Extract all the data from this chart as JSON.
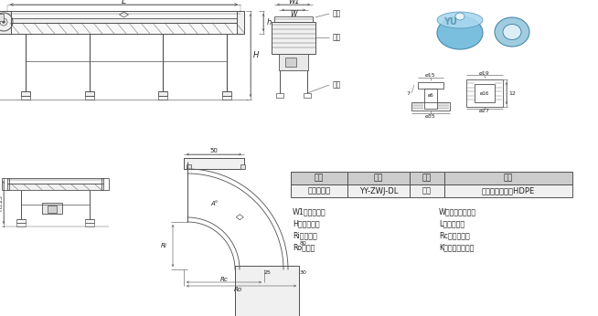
{
  "bg_color": "#ffffff",
  "line_color": "#505050",
  "table_header_bg": "#cccccc",
  "table_row_bg": "#f0f0f0",
  "product_color": "#87CEEB",
  "table_headers": [
    "名称",
    "规格",
    "颜色",
    "材质"
  ],
  "table_row": [
    "转弯机导轮",
    "YY-ZWJ-DL",
    "白色",
    "超高分子聚乙烯HDPE"
  ],
  "legend_items": [
    [
      "W1：机身宽度",
      "W：皮带有效宽度"
    ],
    [
      "H：机身高度",
      "L：机身长度"
    ],
    [
      "Ri：内半径",
      "Rc：中心半径"
    ],
    [
      "Ro：外径",
      "K：输送台面厚度"
    ]
  ]
}
